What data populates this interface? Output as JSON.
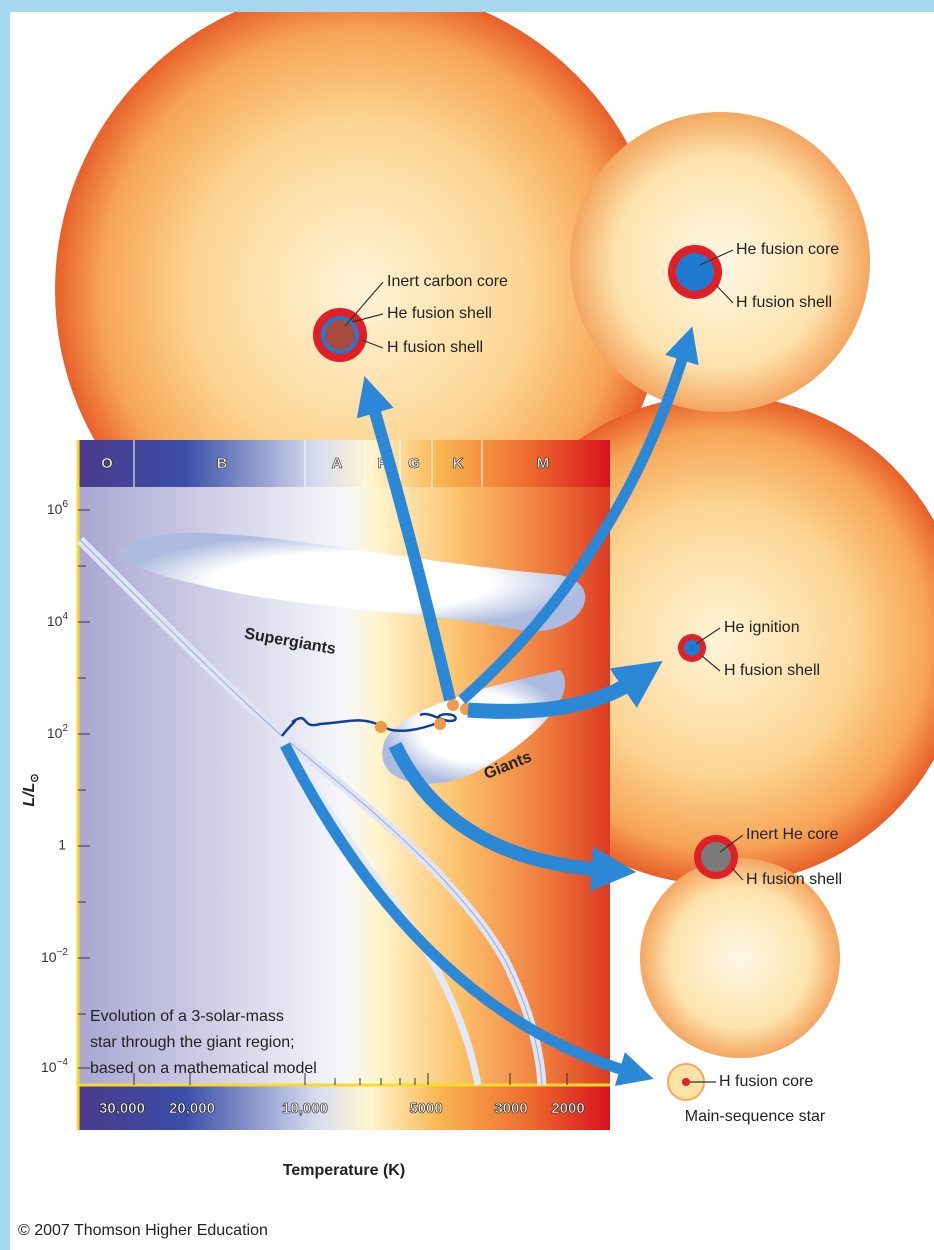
{
  "spectral_classes": [
    "O",
    "B",
    "A",
    "F",
    "G",
    "K",
    "M"
  ],
  "y_axis": {
    "label": "L/L",
    "sun_symbol": "⊙",
    "ticks": [
      {
        "base": "10",
        "exp": "6"
      },
      {
        "base": "10",
        "exp": "4"
      },
      {
        "base": "10",
        "exp": "2"
      },
      {
        "base": "1"
      },
      {
        "base": "10",
        "exp": "−2"
      },
      {
        "base": "10",
        "exp": "−4"
      }
    ]
  },
  "x_axis": {
    "label": "Temperature (K)",
    "ticks": [
      "30,000",
      "20,000",
      "10,000",
      "5000",
      "3000",
      "2000"
    ]
  },
  "regions": {
    "supergiants": "Supergiants",
    "giants": "Giants"
  },
  "note": [
    "Evolution of a 3-solar-mass",
    "star through the giant region;",
    "based on a mathematical model"
  ],
  "stars": [
    {
      "labels": [
        "Inert carbon core",
        "He fusion shell",
        "H fusion shell"
      ]
    },
    {
      "labels": [
        "He fusion core",
        "H fusion shell"
      ]
    },
    {
      "labels": [
        "He ignition",
        "H fusion shell"
      ]
    },
    {
      "labels": [
        "Inert He core",
        "H fusion shell"
      ]
    },
    {
      "labels": [
        "H fusion core"
      ],
      "caption": "Main-sequence star"
    }
  ],
  "copyright": "© 2007 Thomson Higher Education"
}
